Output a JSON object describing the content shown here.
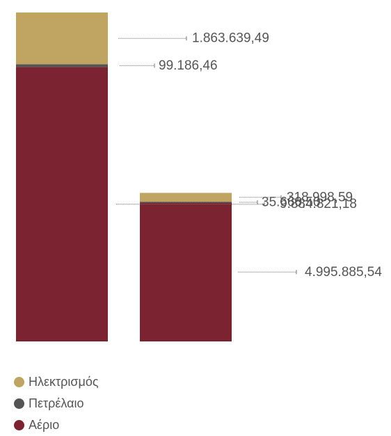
{
  "chart_data": {
    "type": "bar",
    "stacked": true,
    "categories": [
      "",
      ""
    ],
    "series": [
      {
        "name": "Αέριο",
        "color": "#7b2331",
        "values": [
          9884821.18,
          4995885.54
        ],
        "labels": [
          "9.884.821,18",
          "4.995.885,54"
        ]
      },
      {
        "name": "Πετρέλαιο",
        "color": "#545454",
        "values": [
          99186.46,
          35660.5
        ],
        "labels": [
          "99.186,46",
          "35.660,50"
        ]
      },
      {
        "name": "Ηλεκτρισμός",
        "color": "#c0a461",
        "values": [
          1863639.49,
          318998.59
        ],
        "labels": [
          "1.863.639,49",
          "318.998,59"
        ]
      }
    ],
    "grid": false,
    "legend_position": "bottom-left"
  },
  "legend": [
    {
      "label": "Ηλεκτρισμός",
      "color": "#c0a461"
    },
    {
      "label": "Πετρέλαιο",
      "color": "#545454"
    },
    {
      "label": "Αέριο",
      "color": "#7b2331"
    }
  ]
}
